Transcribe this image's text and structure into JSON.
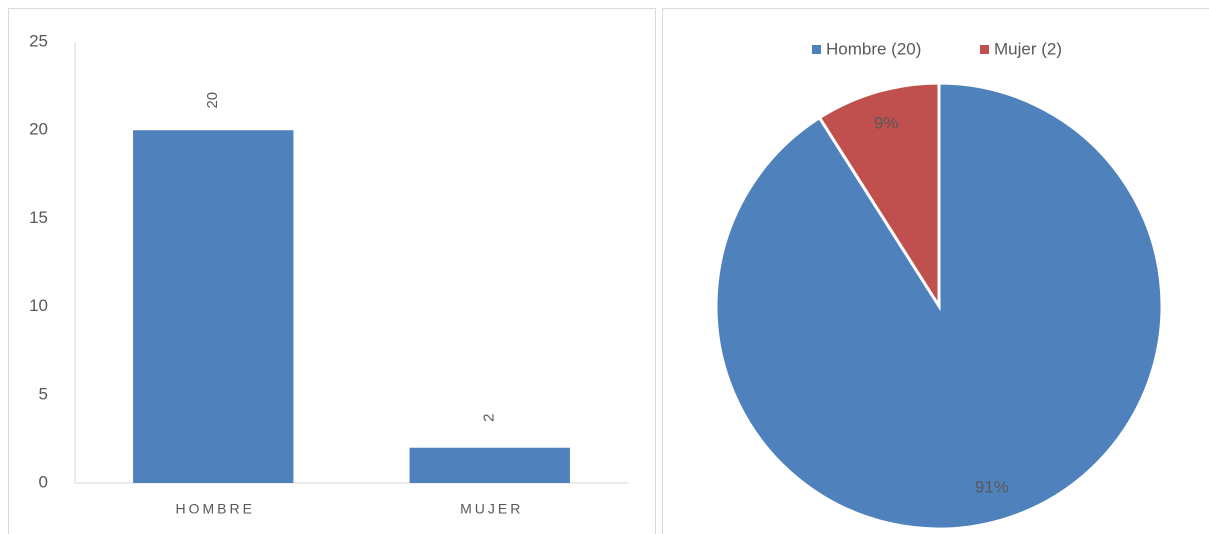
{
  "chart_data": [
    {
      "type": "bar",
      "categories": [
        "HOMBRE",
        "MUJER"
      ],
      "values": [
        20,
        2
      ],
      "color": "#4f81bd",
      "ylim": [
        0,
        25
      ],
      "yticks": [
        0,
        5,
        10,
        15,
        20,
        25
      ],
      "grid": false
    },
    {
      "type": "pie",
      "legend": "top",
      "series": [
        {
          "name": "Hombre (20)",
          "color": "#4f81bd"
        },
        {
          "name": "Mujer (2)",
          "color": "#c0504d"
        }
      ],
      "values": [
        91,
        9
      ],
      "value_labels": [
        "91%",
        "9%"
      ]
    }
  ]
}
